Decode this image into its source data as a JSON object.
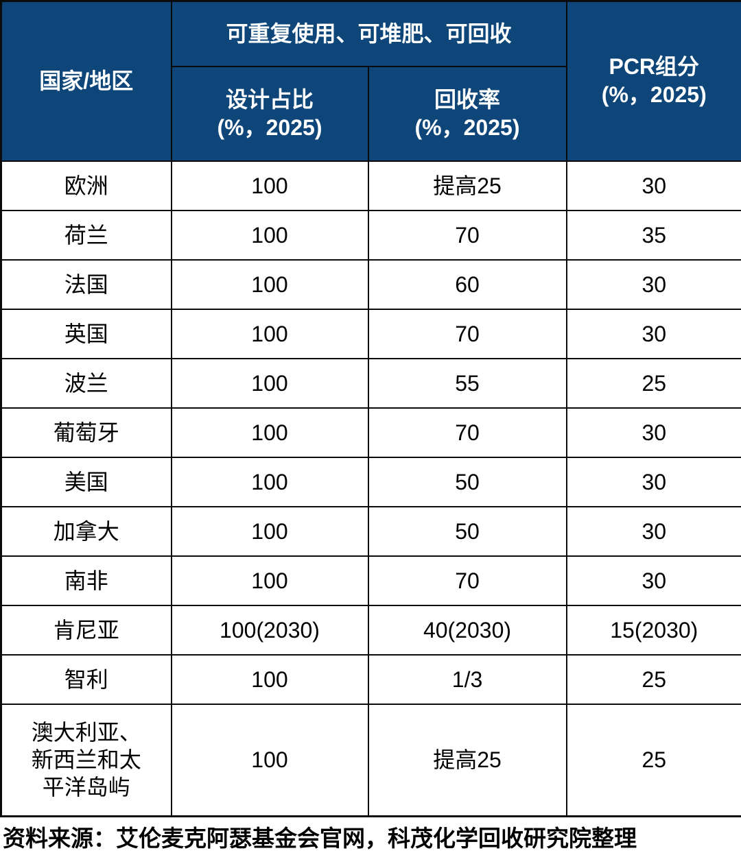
{
  "colors": {
    "header_bg": "#0e4679",
    "header_text": "#ffffff",
    "body_bg": "#ffffff",
    "body_text": "#000000",
    "border": "#0a0a0a"
  },
  "table": {
    "header": {
      "region": "国家/地区",
      "group": "可重复使用、可堆肥、可回收",
      "design_title": "设计占比",
      "design_unit": "(%，2025)",
      "recycle_title": "回收率",
      "recycle_unit": "(%，2025)",
      "pcr_title": "PCR组分",
      "pcr_unit": "(%，2025)"
    },
    "rows": [
      {
        "region": "欧洲",
        "design": "100",
        "recycle": "提高25",
        "pcr": "30"
      },
      {
        "region": "荷兰",
        "design": "100",
        "recycle": "70",
        "pcr": "35"
      },
      {
        "region": "法国",
        "design": "100",
        "recycle": "60",
        "pcr": "30"
      },
      {
        "region": "英国",
        "design": "100",
        "recycle": "70",
        "pcr": "30"
      },
      {
        "region": "波兰",
        "design": "100",
        "recycle": "55",
        "pcr": "25"
      },
      {
        "region": "葡萄牙",
        "design": "100",
        "recycle": "70",
        "pcr": "30"
      },
      {
        "region": "美国",
        "design": "100",
        "recycle": "50",
        "pcr": "30"
      },
      {
        "region": "加拿大",
        "design": "100",
        "recycle": "50",
        "pcr": "30"
      },
      {
        "region": "南非",
        "design": "100",
        "recycle": "70",
        "pcr": "30"
      },
      {
        "region": "肯尼亚",
        "design": "100(2030)",
        "recycle": "40(2030)",
        "pcr": "15(2030)"
      },
      {
        "region": "智利",
        "design": "100",
        "recycle": "1/3",
        "pcr": "25"
      },
      {
        "region": "澳大利亚、新西兰和太平洋岛屿",
        "design": "100",
        "recycle": "提高25",
        "pcr": "25"
      }
    ]
  },
  "source_note": "资料来源：艾伦麦克阿瑟基金会官网，科茂化学回收研究院整理",
  "chart_data": {
    "type": "table",
    "title": "",
    "column_group": {
      "label": "可重复使用、可堆肥、可回收",
      "spans": [
        "设计占比(%，2025)",
        "回收率(%，2025)"
      ]
    },
    "columns": [
      "国家/地区",
      "设计占比(%，2025)",
      "回收率(%，2025)",
      "PCR组分(%，2025)"
    ],
    "rows": [
      [
        "欧洲",
        "100",
        "提高25",
        "30"
      ],
      [
        "荷兰",
        "100",
        "70",
        "35"
      ],
      [
        "法国",
        "100",
        "60",
        "30"
      ],
      [
        "英国",
        "100",
        "70",
        "30"
      ],
      [
        "波兰",
        "100",
        "55",
        "25"
      ],
      [
        "葡萄牙",
        "100",
        "70",
        "30"
      ],
      [
        "美国",
        "100",
        "50",
        "30"
      ],
      [
        "加拿大",
        "100",
        "50",
        "30"
      ],
      [
        "南非",
        "100",
        "70",
        "30"
      ],
      [
        "肯尼亚",
        "100(2030)",
        "40(2030)",
        "15(2030)"
      ],
      [
        "智利",
        "100",
        "1/3",
        "25"
      ],
      [
        "澳大利亚、新西兰和太平洋岛屿",
        "100",
        "提高25",
        "25"
      ]
    ],
    "source": "资料来源：艾伦麦克阿瑟基金会官网，科茂化学回收研究院整理"
  }
}
